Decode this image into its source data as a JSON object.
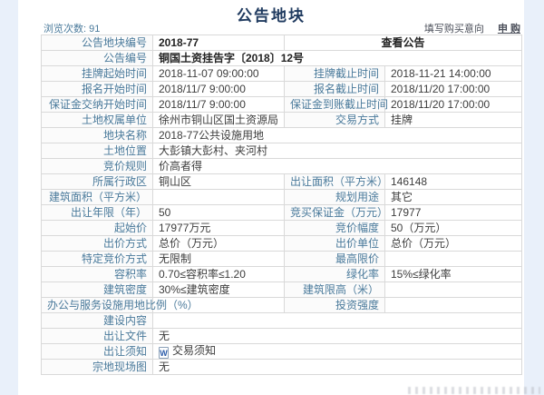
{
  "page": {
    "title": "公告地块",
    "views_label": "浏览次数: 91",
    "link_intent": "填写购买意向",
    "link_apply": "申 购"
  },
  "colors": {
    "label_text": "#4a7a9b",
    "title_text": "#1f3a5f",
    "page_background": "#e9f0fa",
    "table_border": "#d9d9d9"
  },
  "icons": {
    "doc_icon_glyph": "W"
  },
  "table": {
    "rows": [
      [
        {
          "k": "label",
          "t": "公告地块编号"
        },
        {
          "k": "value",
          "t": "2018-77",
          "b": 1
        },
        {
          "k": "value",
          "t": "查看公告",
          "cs": 2,
          "b": 1,
          "c": 1,
          "link": 1
        }
      ],
      [
        {
          "k": "label",
          "t": "公告编号"
        },
        {
          "k": "value",
          "t": "铜国土资挂告字〔2018〕12号",
          "cs": 3,
          "b": 1
        }
      ],
      [
        {
          "k": "label",
          "t": "挂牌起始时间"
        },
        {
          "k": "value",
          "t": "2018-11-07 09:00:00"
        },
        {
          "k": "label",
          "t": "挂牌截止时间"
        },
        {
          "k": "value",
          "t": "2018-11-21 14:00:00"
        }
      ],
      [
        {
          "k": "label",
          "t": "报名开始时间"
        },
        {
          "k": "value",
          "t": "2018/11/7 9:00:00"
        },
        {
          "k": "label",
          "t": "报名截止时间"
        },
        {
          "k": "value",
          "t": "2018/11/20 17:00:00"
        }
      ],
      [
        {
          "k": "label",
          "t": "保证金交纳开始时间"
        },
        {
          "k": "value",
          "t": "2018/11/7 9:00:00"
        },
        {
          "k": "label",
          "t": "保证金到账截止时间"
        },
        {
          "k": "value",
          "t": "2018/11/20 17:00:00"
        }
      ],
      [
        {
          "k": "label",
          "t": "土地权属单位"
        },
        {
          "k": "value",
          "t": "徐州市铜山区国土资源局"
        },
        {
          "k": "label",
          "t": "交易方式"
        },
        {
          "k": "value",
          "t": "挂牌"
        }
      ],
      [
        {
          "k": "label",
          "t": "地块名称"
        },
        {
          "k": "value",
          "t": "2018-77公共设施用地",
          "cs": 3
        }
      ],
      [
        {
          "k": "label",
          "t": "土地位置"
        },
        {
          "k": "value",
          "t": "大彭镇大彭村、夹河村",
          "cs": 3
        }
      ],
      [
        {
          "k": "label",
          "t": "竞价规则"
        },
        {
          "k": "value",
          "t": "价高者得",
          "cs": 3
        }
      ],
      [
        {
          "k": "label",
          "t": "所属行政区"
        },
        {
          "k": "value",
          "t": "铜山区"
        },
        {
          "k": "label",
          "t": "出让面积（平方米）"
        },
        {
          "k": "value",
          "t": "146148"
        }
      ],
      [
        {
          "k": "label",
          "t": "建筑面积（平方米）"
        },
        {
          "k": "value",
          "t": ""
        },
        {
          "k": "label",
          "t": "规划用途"
        },
        {
          "k": "value",
          "t": "其它"
        }
      ],
      [
        {
          "k": "label",
          "t": "出让年限（年）"
        },
        {
          "k": "value",
          "t": "50"
        },
        {
          "k": "label",
          "t": "竞买保证金（万元）"
        },
        {
          "k": "value",
          "t": "17977"
        }
      ],
      [
        {
          "k": "label",
          "t": "起始价"
        },
        {
          "k": "value",
          "t": "17977万元"
        },
        {
          "k": "label",
          "t": "竞价幅度"
        },
        {
          "k": "value",
          "t": "50（万元）"
        }
      ],
      [
        {
          "k": "label",
          "t": "出价方式"
        },
        {
          "k": "value",
          "t": "总价（万元）"
        },
        {
          "k": "label",
          "t": "出价单位"
        },
        {
          "k": "value",
          "t": "总价（万元）"
        }
      ],
      [
        {
          "k": "label",
          "t": "特定竞价方式"
        },
        {
          "k": "value",
          "t": "无限制"
        },
        {
          "k": "label",
          "t": "最高限价"
        },
        {
          "k": "value",
          "t": ""
        }
      ],
      [
        {
          "k": "label",
          "t": "容积率"
        },
        {
          "k": "value",
          "t": "0.70≤容积率≤1.20"
        },
        {
          "k": "label",
          "t": "绿化率"
        },
        {
          "k": "value",
          "t": "15%≤绿化率"
        }
      ],
      [
        {
          "k": "label",
          "t": "建筑密度"
        },
        {
          "k": "value",
          "t": "30%≤建筑密度"
        },
        {
          "k": "label",
          "t": "建筑限高（米）"
        },
        {
          "k": "value",
          "t": ""
        }
      ],
      [
        {
          "k": "label",
          "t": "办公与服务设施用地比例（%）"
        },
        {
          "k": "value",
          "t": ""
        },
        {
          "k": "label",
          "t": "投资强度"
        },
        {
          "k": "value",
          "t": ""
        }
      ],
      [
        {
          "k": "label",
          "t": "建设内容"
        },
        {
          "k": "value",
          "t": "",
          "cs": 3
        }
      ],
      [
        {
          "k": "label",
          "t": "出让文件"
        },
        {
          "k": "value",
          "t": "无",
          "cs": 3
        }
      ],
      [
        {
          "k": "label",
          "t": "出让须知"
        },
        {
          "k": "value",
          "t": "交易须知",
          "cs": 3,
          "icon": "word-doc",
          "link": 1
        }
      ],
      [
        {
          "k": "label",
          "t": "宗地现场图"
        },
        {
          "k": "value",
          "t": "无",
          "cs": 3
        }
      ]
    ]
  }
}
